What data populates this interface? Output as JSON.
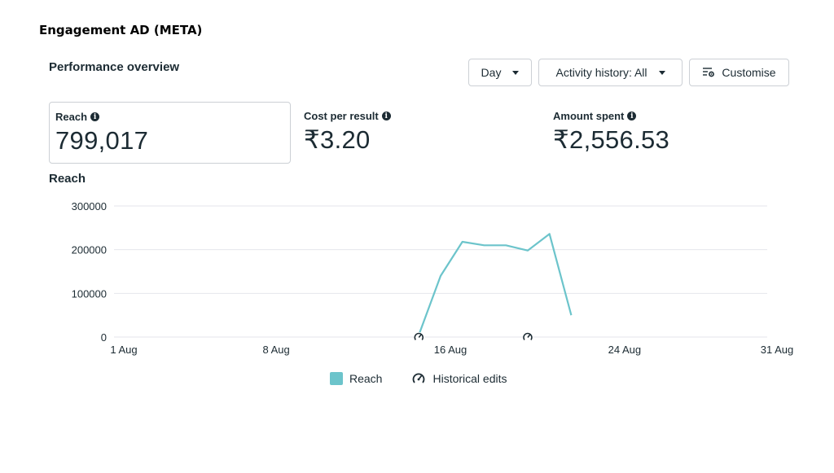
{
  "page": {
    "heading": "Engagement AD (META)"
  },
  "section": {
    "title": "Performance overview"
  },
  "toolbar": {
    "day_label": "Day",
    "activity_label": "Activity history: All",
    "customise_label": "Customise"
  },
  "metrics": [
    {
      "label": "Reach",
      "value": "799,017"
    },
    {
      "label": "Cost per result",
      "value": "₹3.20"
    },
    {
      "label": "Amount spent",
      "value": "₹2,556.53"
    }
  ],
  "colors": {
    "series": "#6cc4cb",
    "grid": "#e4e6eb",
    "text": "#1c2b33"
  },
  "chart_data": {
    "type": "line",
    "title": "Reach",
    "y_ticks": [
      0,
      100000,
      200000,
      300000
    ],
    "ylim": [
      0,
      300000
    ],
    "x_tick_labels": [
      "1 Aug",
      "8 Aug",
      "16 Aug",
      "24 Aug",
      "31 Aug"
    ],
    "x_tick_days": [
      1,
      8,
      16,
      24,
      31
    ],
    "xlim_days": [
      1,
      31
    ],
    "grid": true,
    "legend_position": "bottom",
    "series": [
      {
        "name": "Reach",
        "color": "#6cc4cb",
        "x_days": [
          15,
          16,
          17,
          18,
          19,
          20,
          21,
          22
        ],
        "values": [
          5000,
          140000,
          218000,
          210000,
          210000,
          198000,
          236000,
          50000
        ]
      }
    ],
    "historical_edits_days": [
      15,
      20
    ],
    "legend": [
      "Reach",
      "Historical edits"
    ]
  }
}
